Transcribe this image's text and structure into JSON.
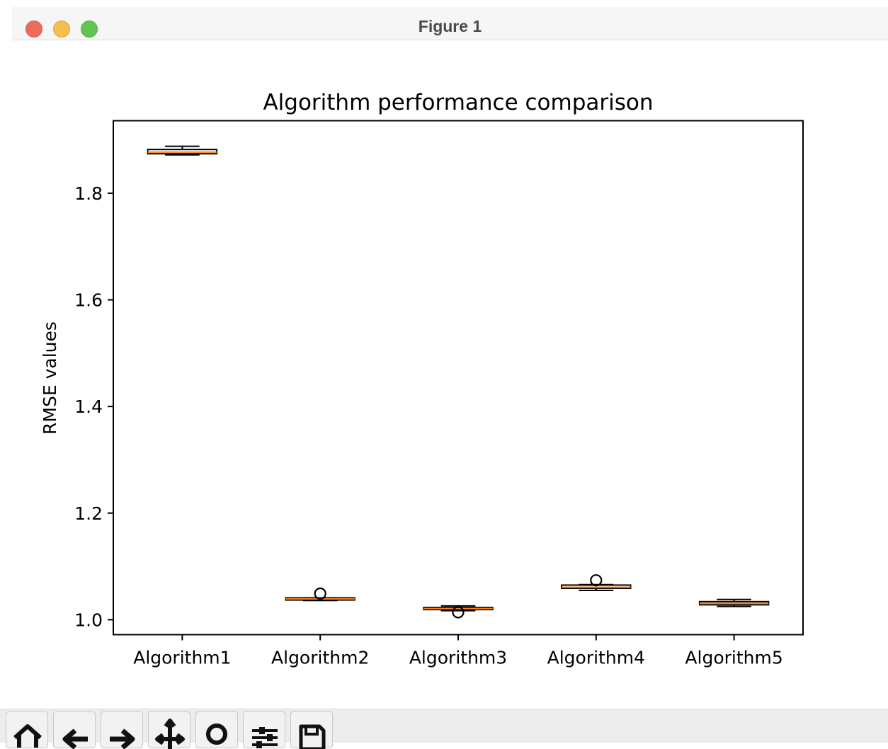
{
  "window": {
    "title": "Figure 1"
  },
  "toolbar": {
    "buttons": [
      {
        "name": "home-icon",
        "tooltip": "Reset original view"
      },
      {
        "name": "back-arrow-icon",
        "tooltip": "Back to previous view"
      },
      {
        "name": "forward-arrow-icon",
        "tooltip": "Forward to next view"
      },
      {
        "name": "pan-icon",
        "tooltip": "Pan axes"
      },
      {
        "name": "zoom-icon",
        "tooltip": "Zoom to rectangle"
      },
      {
        "name": "configure-subplots-icon",
        "tooltip": "Configure subplots"
      },
      {
        "name": "save-icon",
        "tooltip": "Save the figure"
      }
    ]
  },
  "chart_data": {
    "type": "boxplot",
    "title": "Algorithm performance comparison",
    "xlabel": "",
    "ylabel": "RMSE values",
    "ylim": [
      0.972,
      1.936
    ],
    "yticks": [
      1.0,
      1.2,
      1.4,
      1.6,
      1.8
    ],
    "ytick_labels": [
      "1.0",
      "1.2",
      "1.4",
      "1.6",
      "1.8"
    ],
    "categories": [
      "Algorithm1",
      "Algorithm2",
      "Algorithm3",
      "Algorithm4",
      "Algorithm5"
    ],
    "boxes": [
      {
        "whislo": 1.872,
        "q1": 1.874,
        "med": 1.877,
        "q3": 1.882,
        "whishi": 1.888,
        "fliers": []
      },
      {
        "whislo": 1.036,
        "q1": 1.037,
        "med": 1.039,
        "q3": 1.041,
        "whishi": 1.041,
        "fliers": [
          1.049
        ]
      },
      {
        "whislo": 1.017,
        "q1": 1.019,
        "med": 1.021,
        "q3": 1.023,
        "whishi": 1.026,
        "fliers": [
          1.014
        ]
      },
      {
        "whislo": 1.055,
        "q1": 1.059,
        "med": 1.061,
        "q3": 1.065,
        "whishi": 1.066,
        "fliers": [
          1.074
        ]
      },
      {
        "whislo": 1.025,
        "q1": 1.028,
        "med": 1.031,
        "q3": 1.034,
        "whishi": 1.038,
        "fliers": []
      }
    ],
    "colors": {
      "box": "#000000",
      "median": "#ff7f0e",
      "axes": "#000000",
      "text": "#000000"
    },
    "grid": false,
    "legend": "none"
  }
}
